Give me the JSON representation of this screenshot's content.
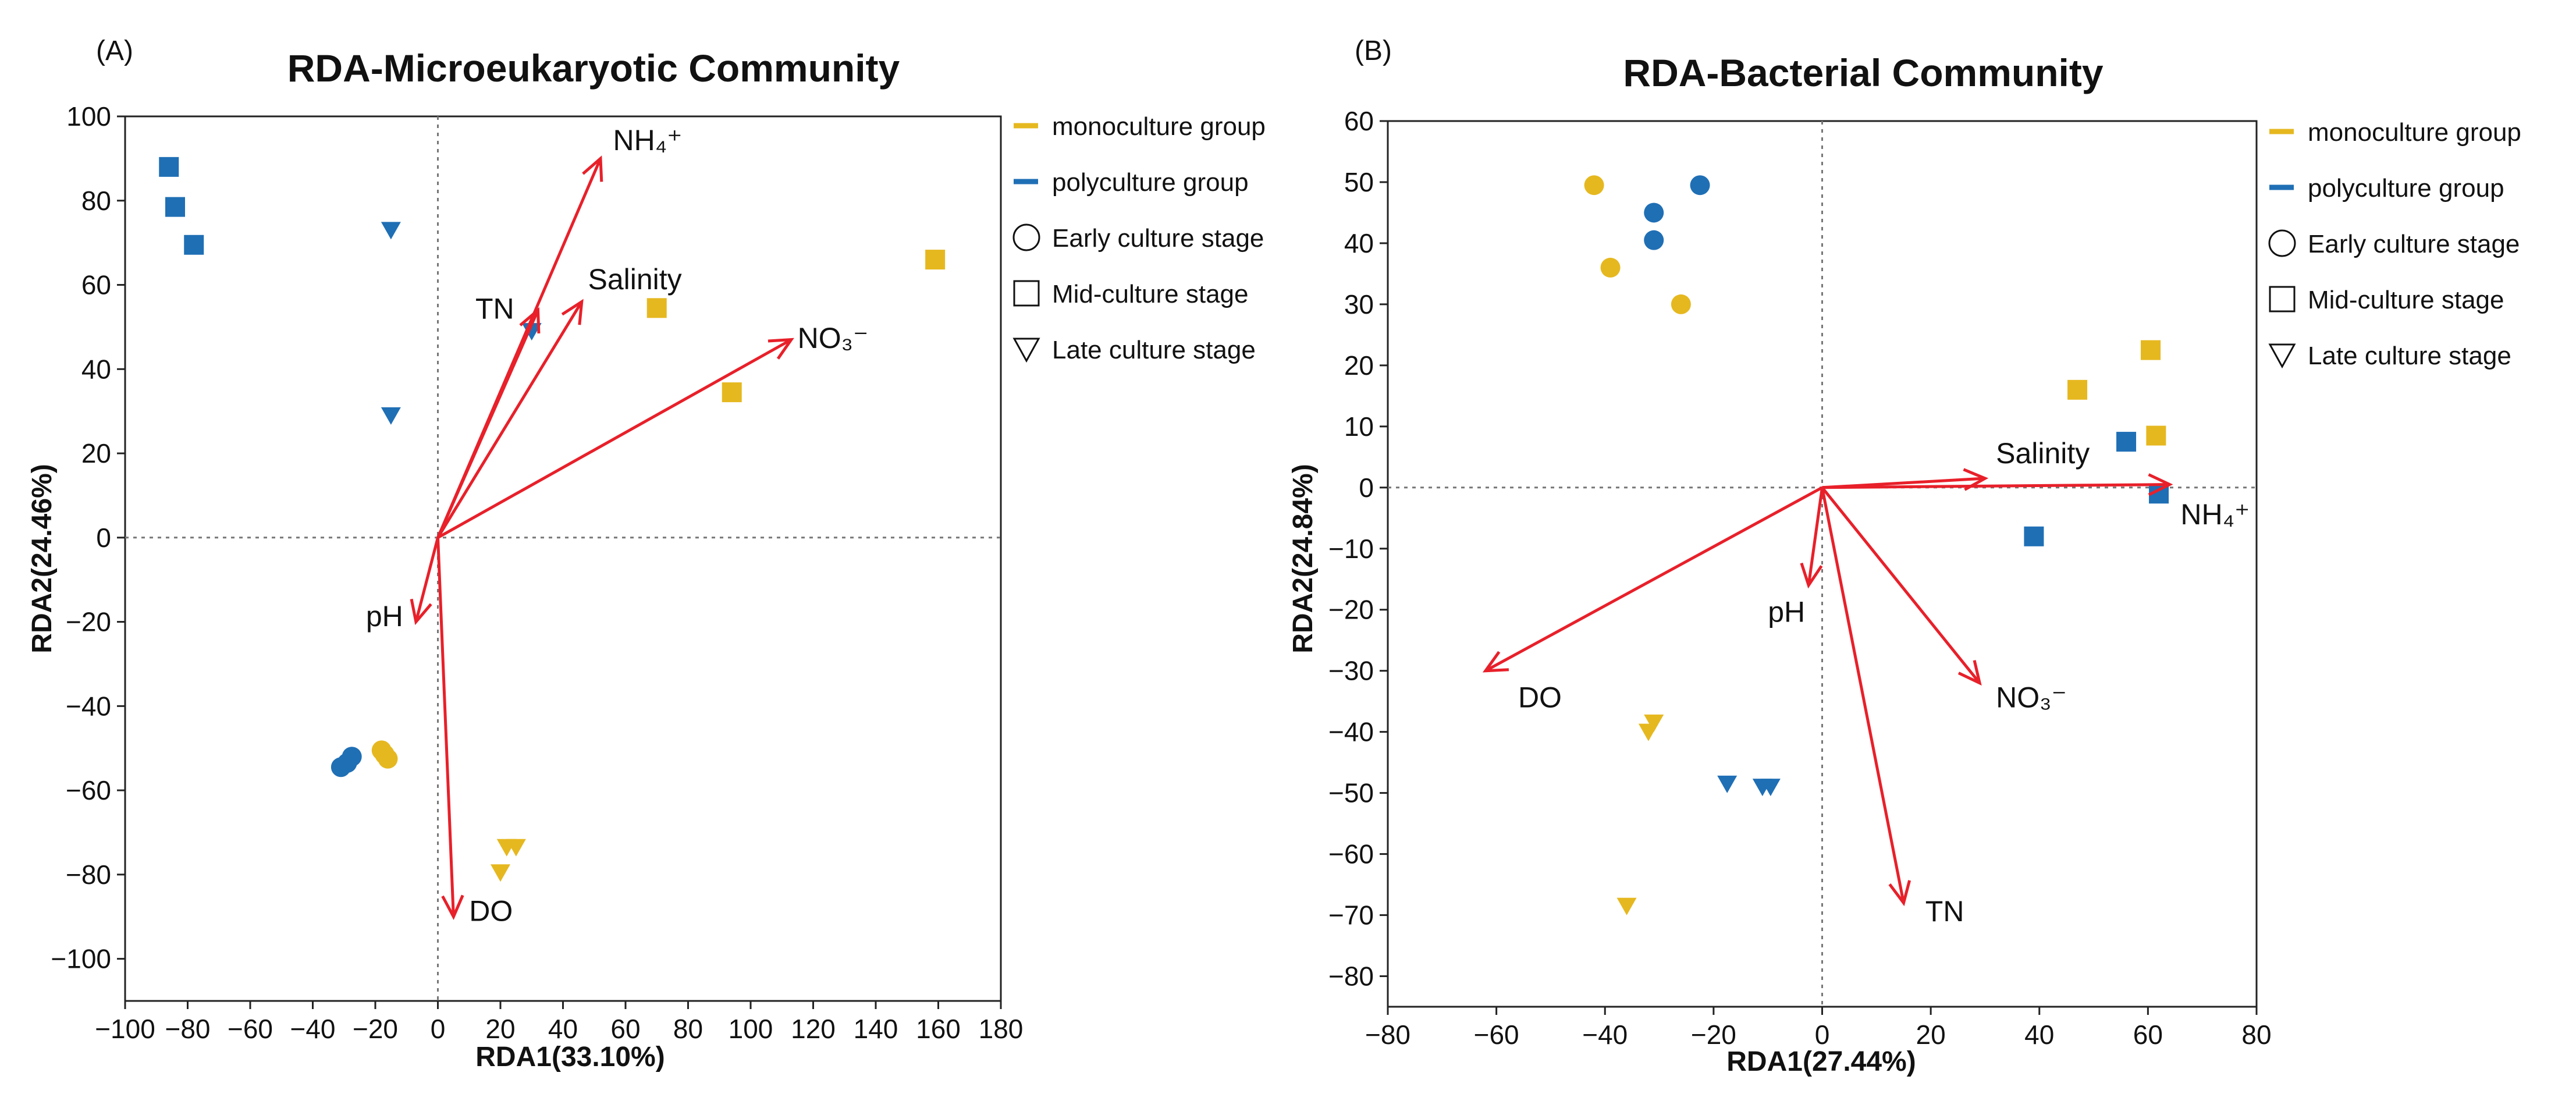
{
  "chart_data": [
    {
      "type": "scatter",
      "panel": "(A)",
      "title": "RDA-Microeukaryotic Community",
      "xlabel": "RDA1(33.10%)",
      "ylabel": "RDA2(24.46%)",
      "xlim": [
        -100,
        180
      ],
      "ylim": [
        -110,
        100
      ],
      "xticks": [
        -100,
        -80,
        -60,
        -40,
        -20,
        0,
        20,
        40,
        60,
        80,
        100,
        120,
        140,
        160,
        180
      ],
      "yticks": [
        -100,
        -80,
        -60,
        -40,
        -20,
        0,
        20,
        40,
        60,
        80,
        100
      ],
      "xtick_labels": [
        "−100",
        "−80",
        "−60",
        "−40",
        "−20",
        "0",
        "20",
        "40",
        "60",
        "80",
        "100",
        "120",
        "140",
        "160",
        "180"
      ],
      "ytick_labels": [
        "−100",
        "−80",
        "−60",
        "−40",
        "−20",
        "0",
        "20",
        "40",
        "60",
        "80",
        "100"
      ],
      "reference_lines": {
        "x": 0,
        "y": 0,
        "style": "dotted"
      },
      "arrows": [
        {
          "label": "NH₄⁺",
          "x": 52,
          "y": 90,
          "label_x": 56,
          "label_y": 92
        },
        {
          "label": "TN",
          "x": 32,
          "y": 54,
          "label_x": 12,
          "label_y": 52
        },
        {
          "label": "Salinity",
          "x": 46,
          "y": 56,
          "label_x": 48,
          "label_y": 59
        },
        {
          "label": "NO₃⁻",
          "x": 113,
          "y": 47,
          "label_x": 115,
          "label_y": 45
        },
        {
          "label": "pH",
          "x": -7,
          "y": -20,
          "label_x": -23,
          "label_y": -21
        },
        {
          "label": "DO",
          "x": 5,
          "y": -90,
          "label_x": 10,
          "label_y": -91
        }
      ],
      "series": [
        {
          "group": "polyculture group",
          "stage": "Mid-culture stage",
          "marker": "square",
          "color": "#1f6fb5",
          "points": [
            [
              -86,
              88
            ],
            [
              -84,
              78.5
            ],
            [
              -78,
              69.5
            ]
          ]
        },
        {
          "group": "polyculture group",
          "stage": "Late culture stage",
          "marker": "triangle-down",
          "color": "#1f6fb5",
          "points": [
            [
              -15,
              73
            ],
            [
              -15,
              29
            ],
            [
              30,
              49
            ]
          ]
        },
        {
          "group": "polyculture group",
          "stage": "Early culture stage",
          "marker": "circle",
          "color": "#1f6fb5",
          "points": [
            [
              -31,
              -54.5
            ],
            [
              -29,
              -53.5
            ],
            [
              -27.5,
              -52
            ]
          ]
        },
        {
          "group": "monoculture group",
          "stage": "Early culture stage",
          "marker": "circle",
          "color": "#e6b820",
          "points": [
            [
              -18,
              -50.5
            ],
            [
              -17,
              -51.5
            ],
            [
              -16,
              -52.5
            ]
          ]
        },
        {
          "group": "monoculture group",
          "stage": "Mid-culture stage",
          "marker": "square",
          "color": "#e6b820",
          "points": [
            [
              70,
              54.5
            ],
            [
              94,
              34.5
            ],
            [
              159,
              66
            ]
          ]
        },
        {
          "group": "monoculture group",
          "stage": "Late culture stage",
          "marker": "triangle-down",
          "color": "#e6b820",
          "points": [
            [
              22,
              -73.5
            ],
            [
              25,
              -73.5
            ],
            [
              20,
              -79.5
            ]
          ]
        }
      ]
    },
    {
      "type": "scatter",
      "panel": "(B)",
      "title": "RDA-Bacterial Community",
      "xlabel": "RDA1(27.44%)",
      "ylabel": "RDA2(24.84%)",
      "xlim": [
        -80,
        80
      ],
      "ylim": [
        -85,
        60
      ],
      "xticks": [
        -80,
        -60,
        -40,
        -20,
        0,
        20,
        40,
        60,
        80
      ],
      "yticks": [
        -80,
        -70,
        -60,
        -50,
        -40,
        -30,
        -20,
        -10,
        0,
        10,
        20,
        30,
        40,
        50,
        60
      ],
      "xtick_labels": [
        "−80",
        "−60",
        "−40",
        "−20",
        "0",
        "20",
        "40",
        "60",
        "80"
      ],
      "ytick_labels": [
        "−80",
        "−70",
        "−60",
        "−50",
        "−40",
        "−30",
        "−20",
        "−10",
        "0",
        "10",
        "20",
        "30",
        "40",
        "50",
        "60"
      ],
      "reference_lines": {
        "x": 0,
        "y": 0,
        "style": "dotted"
      },
      "arrows": [
        {
          "label": "Salinity",
          "x": 30,
          "y": 1.5,
          "label_x": 32,
          "label_y": 4
        },
        {
          "label": "NH₄⁺",
          "x": 64,
          "y": 0.5,
          "label_x": 66,
          "label_y": -6
        },
        {
          "label": "pH",
          "x": -2.5,
          "y": -16,
          "label_x": -10,
          "label_y": -22
        },
        {
          "label": "DO",
          "x": -62,
          "y": -30,
          "label_x": -56,
          "label_y": -36
        },
        {
          "label": "NO₃⁻",
          "x": 29,
          "y": -32,
          "label_x": 32,
          "label_y": -36
        },
        {
          "label": "TN",
          "x": 15,
          "y": -68,
          "label_x": 19,
          "label_y": -71
        }
      ],
      "series": [
        {
          "group": "monoculture group",
          "stage": "Early culture stage",
          "marker": "circle",
          "color": "#e6b820",
          "points": [
            [
              -42,
              49.5
            ],
            [
              -39,
              36
            ],
            [
              -26,
              30
            ]
          ]
        },
        {
          "group": "polyculture group",
          "stage": "Early culture stage",
          "marker": "circle",
          "color": "#1f6fb5",
          "points": [
            [
              -31,
              45
            ],
            [
              -31,
              40.5
            ],
            [
              -22.5,
              49.5
            ]
          ]
        },
        {
          "group": "monoculture group",
          "stage": "Mid-culture stage",
          "marker": "square",
          "color": "#e6b820",
          "points": [
            [
              60.5,
              22.5
            ],
            [
              47,
              16
            ],
            [
              61.5,
              8.5
            ]
          ]
        },
        {
          "group": "polyculture group",
          "stage": "Mid-culture stage",
          "marker": "square",
          "color": "#1f6fb5",
          "points": [
            [
              56,
              7.5
            ],
            [
              62,
              -1
            ],
            [
              39,
              -8
            ]
          ]
        },
        {
          "group": "monoculture group",
          "stage": "Late culture stage",
          "marker": "triangle-down",
          "color": "#e6b820",
          "points": [
            [
              -31,
              -38.5
            ],
            [
              -32,
              -40
            ],
            [
              -36,
              -68.5
            ]
          ]
        },
        {
          "group": "polyculture group",
          "stage": "Late culture stage",
          "marker": "triangle-down",
          "color": "#1f6fb5",
          "points": [
            [
              -17.5,
              -48.5
            ],
            [
              -11,
              -49
            ],
            [
              -9.5,
              -49
            ]
          ]
        }
      ]
    }
  ],
  "legend": [
    {
      "label": "monoculture group",
      "symbol": "line",
      "color": "#e6b820"
    },
    {
      "label": "polyculture group",
      "symbol": "line",
      "color": "#1f6fb5"
    },
    {
      "label": "Early culture stage",
      "symbol": "circle-open"
    },
    {
      "label": "Mid-culture stage",
      "symbol": "square-open"
    },
    {
      "label": "Late culture stage",
      "symbol": "triangle-down-open"
    }
  ],
  "colors": {
    "arrow": "#e8202a",
    "axis": "#222222",
    "reference": "#777777"
  }
}
